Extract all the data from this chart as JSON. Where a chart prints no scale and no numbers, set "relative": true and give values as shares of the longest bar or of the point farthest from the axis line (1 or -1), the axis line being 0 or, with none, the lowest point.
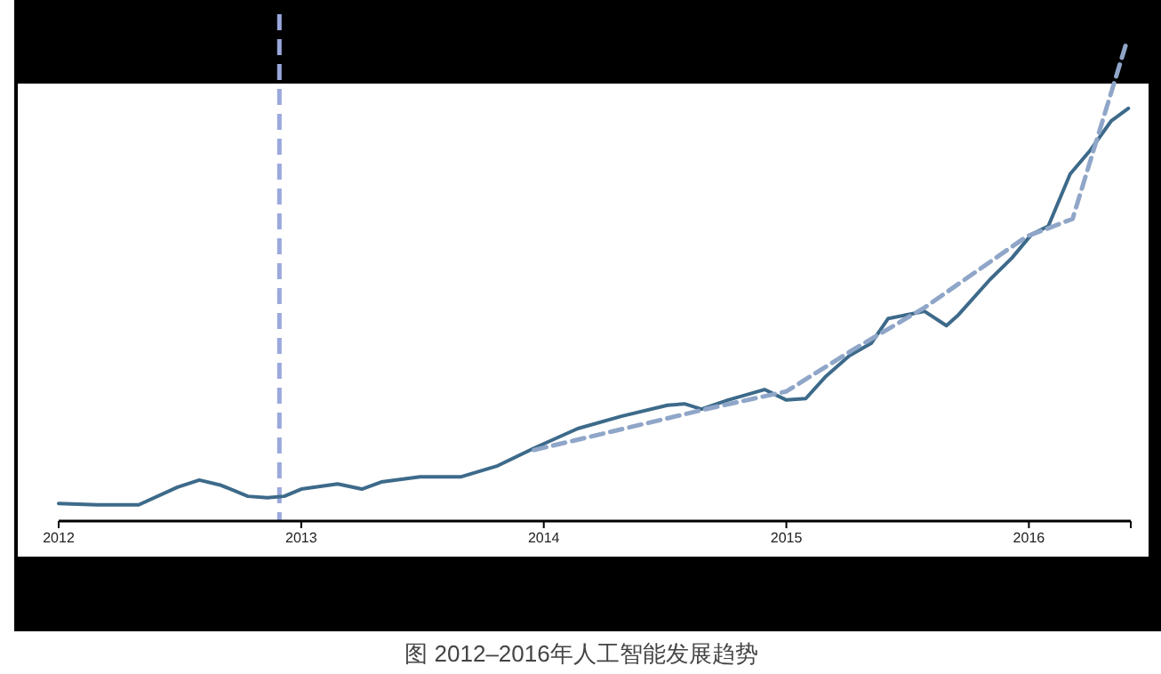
{
  "chart_data": {
    "type": "line",
    "relative": true,
    "xlim": [
      2012,
      2016.42
    ],
    "xticks": [
      2012,
      2013,
      2014,
      2015,
      2016
    ],
    "series": [
      {
        "color": "#3d6a8a",
        "line_style": "solid",
        "x": [
          2012.0,
          2012.16,
          2012.33,
          2012.49,
          2012.58,
          2012.67,
          2012.78,
          2012.86,
          2012.93,
          2013.0,
          2013.15,
          2013.25,
          2013.33,
          2013.49,
          2013.66,
          2013.81,
          2013.96,
          2014.14,
          2014.32,
          2014.51,
          2014.58,
          2014.65,
          2014.76,
          2014.91,
          2015.0,
          2015.08,
          2015.16,
          2015.26,
          2015.35,
          2015.42,
          2015.57,
          2015.66,
          2015.71,
          2015.84,
          2015.93,
          2016.01,
          2016.08,
          2016.17,
          2016.25,
          2016.34,
          2016.41
        ],
        "values": [
          0.037,
          0.034,
          0.034,
          0.071,
          0.086,
          0.075,
          0.052,
          0.049,
          0.052,
          0.067,
          0.078,
          0.067,
          0.082,
          0.093,
          0.093,
          0.116,
          0.153,
          0.194,
          0.22,
          0.243,
          0.246,
          0.235,
          0.254,
          0.276,
          0.254,
          0.257,
          0.302,
          0.347,
          0.373,
          0.425,
          0.44,
          0.41,
          0.433,
          0.507,
          0.552,
          0.601,
          0.619,
          0.728,
          0.776,
          0.84,
          0.866
        ]
      },
      {
        "color": "#8fa6c8",
        "line_style": "dashed",
        "x": [
          2013.96,
          2014.67,
          2015.0,
          2015.27,
          2015.57,
          2015.99,
          2016.18,
          2016.4
        ],
        "values": [
          0.149,
          0.235,
          0.272,
          0.358,
          0.448,
          0.597,
          0.634,
          1.0
        ]
      }
    ],
    "ref_lines": [
      {
        "axis": "x",
        "value": 2012.91,
        "color": "#9aa8dc",
        "line_style": "dashed"
      }
    ],
    "annotations": [
      "图 2012–2016年人工智能发展趋势"
    ]
  }
}
